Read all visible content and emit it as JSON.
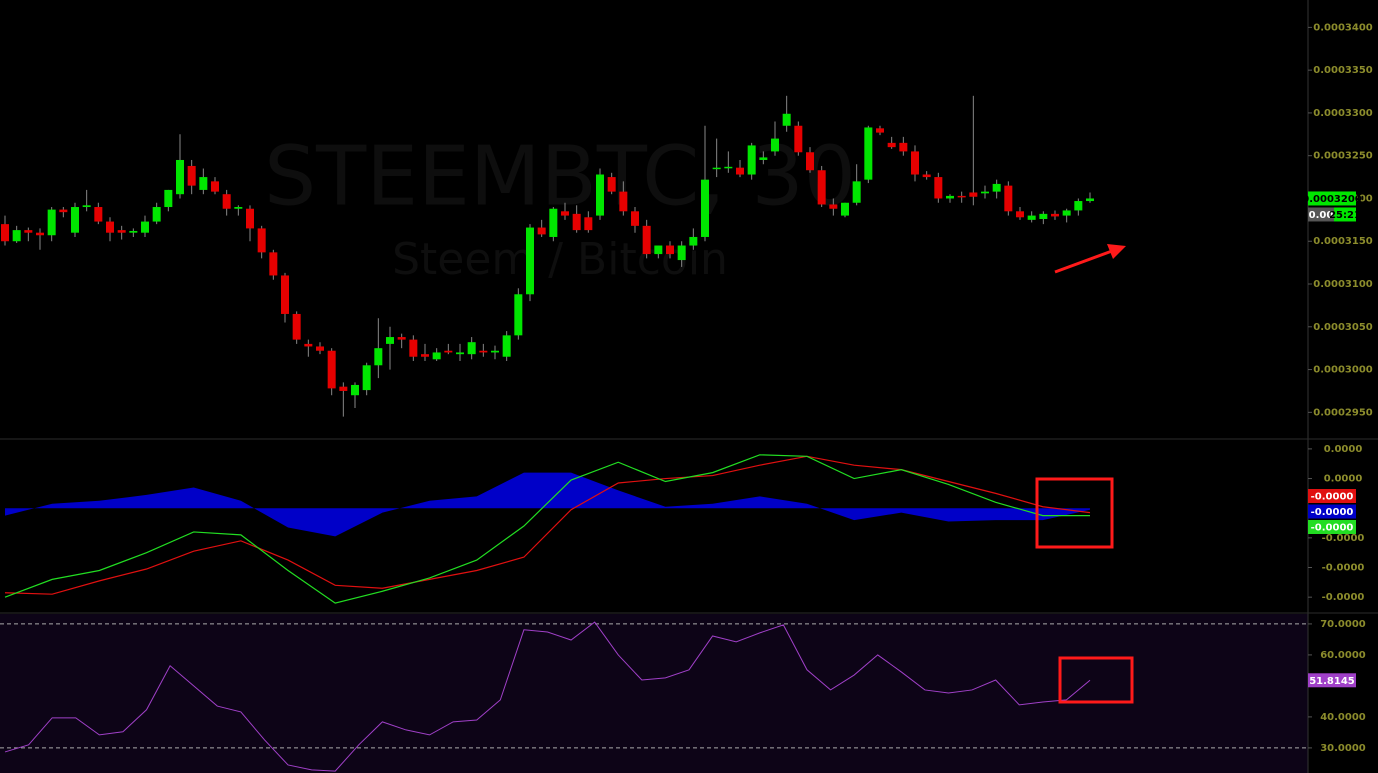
{
  "chart_data": [
    {
      "type": "candlestick",
      "title": "STEEMBTC, 30",
      "subtitle": "Steem / Bitcoin",
      "up_color": "#00e600",
      "down_color": "#e60000",
      "open": [
        0.000317,
        0.000315,
        0.0003163,
        0.000316,
        0.0003157,
        0.0003187,
        0.000316,
        0.000319,
        0.000319,
        0.0003173,
        0.0003163,
        0.000316,
        0.000316,
        0.0003173,
        0.000319,
        0.0003205,
        0.0003238,
        0.000321,
        0.000322,
        0.0003205,
        0.0003188,
        0.0003188,
        0.0003165,
        0.0003137,
        0.000311,
        0.0003065,
        0.000303,
        0.0003027,
        0.0003022,
        0.000298,
        0.000297,
        0.0002976,
        0.0003005,
        0.000303,
        0.0003038,
        0.0003035,
        0.0003018,
        0.0003012,
        0.0003022,
        0.0003018,
        0.0003018,
        0.0003022,
        0.000302,
        0.0003015,
        0.000304,
        0.0003088,
        0.0003166,
        0.0003155,
        0.0003185,
        0.0003182,
        0.0003178,
        0.000318,
        0.0003225,
        0.0003208,
        0.0003185,
        0.0003168,
        0.0003135,
        0.0003145,
        0.0003128,
        0.0003145,
        0.0003155,
        0.0003235,
        0.0003236,
        0.0003236,
        0.0003228,
        0.0003245,
        0.0003255,
        0.0003285,
        0.0003285,
        0.0003254,
        0.0003233,
        0.0003193,
        0.000318,
        0.0003195,
        0.0003222,
        0.0003282,
        0.0003265,
        0.0003265,
        0.0003255,
        0.0003228,
        0.0003225,
        0.00032,
        0.0003203,
        0.0003207,
        0.0003206,
        0.0003208,
        0.0003215,
        0.0003185,
        0.0003175,
        0.0003176,
        0.0003182,
        0.000318,
        0.0003186,
        0.0003197
      ],
      "high": [
        0.000318,
        0.0003168,
        0.0003166,
        0.0003165,
        0.000319,
        0.000319,
        0.0003195,
        0.000321,
        0.0003195,
        0.0003178,
        0.0003168,
        0.0003165,
        0.000318,
        0.0003195,
        0.000321,
        0.0003275,
        0.0003245,
        0.0003235,
        0.0003225,
        0.000321,
        0.0003192,
        0.0003192,
        0.0003168,
        0.000314,
        0.0003113,
        0.0003068,
        0.0003035,
        0.0003032,
        0.0003025,
        0.0002985,
        0.0002985,
        0.0003008,
        0.000306,
        0.000305,
        0.0003042,
        0.000304,
        0.000303,
        0.0003025,
        0.000303,
        0.000303,
        0.0003038,
        0.000303,
        0.0003028,
        0.0003045,
        0.0003095,
        0.000317,
        0.0003175,
        0.000319,
        0.0003195,
        0.0003192,
        0.0003185,
        0.0003235,
        0.000323,
        0.000322,
        0.000319,
        0.0003175,
        0.0003145,
        0.000315,
        0.000315,
        0.0003165,
        0.0003285,
        0.000327,
        0.0003255,
        0.0003245,
        0.0003265,
        0.0003255,
        0.000329,
        0.000332,
        0.000329,
        0.000326,
        0.0003238,
        0.00032,
        0.0003195,
        0.000324,
        0.0003285,
        0.0003285,
        0.0003272,
        0.0003272,
        0.0003262,
        0.0003232,
        0.000323,
        0.0003205,
        0.0003208,
        0.000332,
        0.0003215,
        0.0003222,
        0.000322,
        0.000319,
        0.0003185,
        0.0003185,
        0.0003186,
        0.0003188,
        0.00032,
        0.0003207
      ],
      "low": [
        0.0003145,
        0.0003148,
        0.000315,
        0.000314,
        0.000315,
        0.0003178,
        0.0003155,
        0.0003185,
        0.000317,
        0.000315,
        0.0003152,
        0.0003155,
        0.0003155,
        0.000317,
        0.0003185,
        0.00032,
        0.0003205,
        0.0003205,
        0.0003205,
        0.000318,
        0.000318,
        0.000315,
        0.000313,
        0.0003105,
        0.0003055,
        0.000303,
        0.0003015,
        0.0003018,
        0.000297,
        0.0002945,
        0.0002955,
        0.000297,
        0.000299,
        0.0003,
        0.0003025,
        0.000301,
        0.000301,
        0.000301,
        0.0003018,
        0.000301,
        0.0003012,
        0.0003015,
        0.0003012,
        0.000301,
        0.0003035,
        0.000308,
        0.0003155,
        0.000315,
        0.0003175,
        0.000316,
        0.000316,
        0.0003175,
        0.0003205,
        0.000318,
        0.000316,
        0.000313,
        0.000313,
        0.000313,
        0.000312,
        0.000314,
        0.000315,
        0.0003225,
        0.000323,
        0.0003225,
        0.0003222,
        0.000324,
        0.000325,
        0.0003278,
        0.000325,
        0.000323,
        0.000319,
        0.000318,
        0.0003178,
        0.0003192,
        0.0003218,
        0.0003274,
        0.0003258,
        0.000325,
        0.000322,
        0.0003222,
        0.0003195,
        0.0003195,
        0.0003195,
        0.0003192,
        0.00032,
        0.00032,
        0.000318,
        0.0003175,
        0.0003172,
        0.000317,
        0.0003175,
        0.0003172,
        0.000318,
        0.0003195
      ],
      "close": [
        0.000315,
        0.0003163,
        0.000316,
        0.0003157,
        0.0003187,
        0.0003184,
        0.000319,
        0.0003192,
        0.0003173,
        0.000316,
        0.000316,
        0.0003162,
        0.0003173,
        0.000319,
        0.000321,
        0.0003245,
        0.0003215,
        0.0003225,
        0.0003208,
        0.0003188,
        0.000319,
        0.0003165,
        0.0003137,
        0.000311,
        0.0003065,
        0.0003035,
        0.0003027,
        0.0003022,
        0.0002978,
        0.0002975,
        0.0002982,
        0.0003005,
        0.0003025,
        0.0003038,
        0.0003035,
        0.0003015,
        0.0003015,
        0.000302,
        0.000302,
        0.000302,
        0.0003032,
        0.000302,
        0.0003022,
        0.000304,
        0.0003088,
        0.0003166,
        0.0003158,
        0.0003188,
        0.000318,
        0.0003163,
        0.0003163,
        0.0003228,
        0.0003208,
        0.0003185,
        0.0003168,
        0.0003135,
        0.0003145,
        0.0003135,
        0.0003145,
        0.0003155,
        0.0003222,
        0.0003236,
        0.0003237,
        0.0003228,
        0.0003262,
        0.0003248,
        0.000327,
        0.0003299,
        0.0003254,
        0.0003233,
        0.0003193,
        0.0003188,
        0.0003195,
        0.000322,
        0.0003283,
        0.0003277,
        0.000326,
        0.0003255,
        0.0003228,
        0.0003225,
        0.00032,
        0.0003203,
        0.0003202,
        0.0003202,
        0.0003208,
        0.0003217,
        0.0003185,
        0.0003178,
        0.000318,
        0.0003182,
        0.0003179,
        0.0003186,
        0.0003197,
        0.00032
      ],
      "close_label": "0.0003200",
      "cursor_label": "0.00",
      "countdown": "25:21",
      "ylim": [
        0.000292,
        0.0003432
      ],
      "yticks": [
        {
          "value": 0.00034,
          "label": "0.0003400"
        },
        {
          "value": 0.000335,
          "label": "0.0003350"
        },
        {
          "value": 0.00033,
          "label": "0.0003300"
        },
        {
          "value": 0.000325,
          "label": "0.0003250"
        },
        {
          "value": 0.00032,
          "label": "0.0003200"
        },
        {
          "value": 0.000315,
          "label": "0.0003150"
        },
        {
          "value": 0.00031,
          "label": "0.0003100"
        },
        {
          "value": 0.000305,
          "label": "0.0003050"
        },
        {
          "value": 0.0003,
          "label": "0.0003000"
        },
        {
          "value": 0.000295,
          "label": "0.0002950"
        }
      ]
    },
    {
      "type": "macd",
      "ylim": [
        -7e-06,
        4.6e-06
      ],
      "yticks": [
        {
          "value": 4e-06,
          "label": "0.0000"
        },
        {
          "value": 2e-06,
          "label": "0.0000"
        },
        {
          "value": -2e-06,
          "label": "-0.0000"
        },
        {
          "value": -4e-06,
          "label": "-0.0000"
        },
        {
          "value": -6e-06,
          "label": "-0.0000"
        }
      ],
      "series": [
        {
          "style": "line",
          "color": "#e01010",
          "current_label": "-0.0000",
          "values": [
            -5.7e-06,
            -5.8e-06,
            -4.9e-06,
            -4.1e-06,
            -2.9e-06,
            -2.2e-06,
            -3.5e-06,
            -5.2e-06,
            -5.4e-06,
            -4.8e-06,
            -4.2e-06,
            -3.3e-06,
            -1e-07,
            1.7e-06,
            2e-06,
            2.2e-06,
            2.9e-06,
            3.5e-06,
            2.9e-06,
            2.6e-06,
            1.8e-06,
            1e-06,
            1e-07,
            -3e-07
          ]
        },
        {
          "style": "histogram",
          "color": "#0000c8",
          "current_label": "-0.0000",
          "values": [
            -5e-07,
            3e-07,
            5e-07,
            9e-07,
            1.4e-06,
            5e-07,
            -1.3e-06,
            -1.9e-06,
            -3e-07,
            5e-07,
            8e-07,
            2.4e-06,
            2.4e-06,
            1.2e-06,
            1e-07,
            3e-07,
            8e-07,
            3e-07,
            -8e-07,
            -3e-07,
            -9e-07,
            -8e-07,
            -8e-07,
            -1e-07
          ]
        },
        {
          "style": "line",
          "color": "#22dd22",
          "current_label": "-0.0000",
          "values": [
            -6e-06,
            -4.8e-06,
            -4.2e-06,
            -3e-06,
            -1.6e-06,
            -1.8e-06,
            -4.2e-06,
            -6.4e-06,
            -5.6e-06,
            -4.7e-06,
            -3.5e-06,
            -1.2e-06,
            1.9e-06,
            3.1e-06,
            1.8e-06,
            2.4e-06,
            3.6e-06,
            3.5e-06,
            2e-06,
            2.6e-06,
            1.6e-06,
            4e-07,
            -5e-07,
            -5e-07
          ]
        }
      ]
    },
    {
      "type": "rsi",
      "ylim": [
        21.9,
        73.2
      ],
      "levels": [
        70,
        30
      ],
      "yticks": [
        {
          "value": 70,
          "label": "70.0000"
        },
        {
          "value": 60,
          "label": "60.0000"
        },
        {
          "value": 40,
          "label": "40.0000"
        },
        {
          "value": 30,
          "label": "30.0000"
        }
      ],
      "series": [
        {
          "color": "#a040c8",
          "values": [
            28.7,
            31.0,
            39.7,
            39.7,
            34.2,
            35.2,
            42.3,
            56.5,
            50.0,
            43.5,
            41.6,
            32.6,
            24.5,
            22.9,
            22.5,
            31.0,
            38.4,
            35.8,
            34.2,
            38.4,
            39.0,
            45.5,
            68.1,
            67.4,
            64.8,
            70.6,
            60.0,
            51.9,
            52.6,
            55.2,
            66.1,
            64.2,
            67.1,
            69.7,
            55.2,
            48.7,
            53.5,
            60.0,
            54.5,
            48.7,
            47.7,
            48.7,
            51.9,
            43.9,
            44.8,
            45.5,
            51.8145
          ]
        }
      ]
    }
  ]
}
